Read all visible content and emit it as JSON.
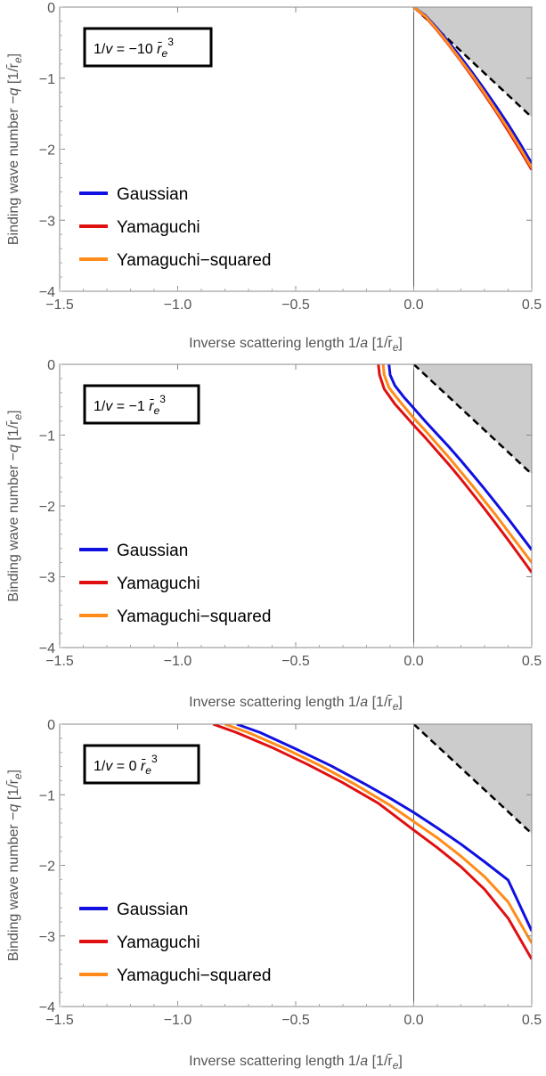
{
  "chart_data": [
    {
      "type": "line",
      "annotation": {
        "prefix": "1/",
        "var": "v",
        "mid": " = −10 ",
        "unit": "r̄",
        "unit_sub": "e",
        "unit_sup": "3"
      },
      "xlabel": {
        "text": "Inverse scattering length 1/",
        "var": "a",
        "unit": "1/r̄",
        "unit_sub": "e"
      },
      "ylabel": {
        "text": "Binding wave number −",
        "var": "q",
        "unit": "1/r̄",
        "unit_sub": "e"
      },
      "xlim": [
        -1.5,
        0.5
      ],
      "ylim": [
        -4,
        0
      ],
      "xticks": [
        -1.5,
        -1.0,
        -0.5,
        0.0,
        0.5
      ],
      "xtick_labels": [
        "−1.5",
        "−1.0",
        "−0.5",
        "0.0",
        "0.5"
      ],
      "yticks": [
        0,
        -1,
        -2,
        -3,
        -4
      ],
      "ytick_labels": [
        "0",
        "−1",
        "−2",
        "−3",
        "−4"
      ],
      "show_xlabel": true,
      "legend": [
        "Gaussian",
        "Yamaguchi",
        "Yamaguchi−squared"
      ],
      "legend_placement": "bottom-left",
      "series": [
        {
          "name": "Gaussian",
          "color": "#1010e0",
          "x": [
            0.0,
            0.05,
            0.1,
            0.15,
            0.2,
            0.25,
            0.3,
            0.35,
            0.4,
            0.45,
            0.5
          ],
          "y": [
            0.0,
            -0.12,
            -0.3,
            -0.5,
            -0.71,
            -0.93,
            -1.16,
            -1.4,
            -1.65,
            -1.92,
            -2.2
          ]
        },
        {
          "name": "Yamaguchi",
          "color": "#e01010",
          "x": [
            0.0,
            0.05,
            0.1,
            0.15,
            0.2,
            0.25,
            0.3,
            0.35,
            0.4,
            0.45,
            0.5
          ],
          "y": [
            0.0,
            -0.14,
            -0.33,
            -0.54,
            -0.76,
            -0.99,
            -1.23,
            -1.48,
            -1.74,
            -2.01,
            -2.29
          ]
        },
        {
          "name": "Yamaguchi−squared",
          "color": "#ff8c1a",
          "x": [
            0.0,
            0.05,
            0.1,
            0.15,
            0.2,
            0.25,
            0.3,
            0.35,
            0.4,
            0.45,
            0.5
          ],
          "y": [
            0.0,
            -0.13,
            -0.32,
            -0.53,
            -0.75,
            -0.97,
            -1.21,
            -1.46,
            -1.71,
            -1.98,
            -2.26
          ]
        }
      ]
    },
    {
      "type": "line",
      "annotation": {
        "prefix": "1/",
        "var": "v",
        "mid": " = −1 ",
        "unit": "r̄",
        "unit_sub": "e",
        "unit_sup": "3"
      },
      "xlabel": {
        "text": "Inverse scattering length 1/",
        "var": "a",
        "unit": "1/r̄",
        "unit_sub": "e"
      },
      "ylabel": {
        "text": "Binding wave number −",
        "var": "q",
        "unit": "1/r̄",
        "unit_sub": "e"
      },
      "xlim": [
        -1.5,
        0.5
      ],
      "ylim": [
        -4,
        0
      ],
      "xticks": [
        -1.5,
        -1.0,
        -0.5,
        0.0,
        0.5
      ],
      "xtick_labels": [
        "−1.5",
        "−1.0",
        "−0.5",
        "0.0",
        "0.5"
      ],
      "yticks": [
        0,
        -1,
        -2,
        -3,
        -4
      ],
      "ytick_labels": [
        "0",
        "−1",
        "−2",
        "−3",
        "−4"
      ],
      "show_xlabel": true,
      "legend": [
        "Gaussian",
        "Yamaguchi",
        "Yamaguchi−squared"
      ],
      "legend_placement": "bottom-left",
      "series": [
        {
          "name": "Gaussian",
          "color": "#1010e0",
          "x": [
            -0.105,
            -0.1,
            -0.08,
            -0.04,
            0.0,
            0.05,
            0.1,
            0.15,
            0.2,
            0.25,
            0.3,
            0.35,
            0.4,
            0.45,
            0.5
          ],
          "y": [
            0.0,
            -0.15,
            -0.3,
            -0.47,
            -0.62,
            -0.81,
            -0.99,
            -1.17,
            -1.36,
            -1.56,
            -1.76,
            -1.97,
            -2.18,
            -2.4,
            -2.62
          ]
        },
        {
          "name": "Yamaguchi",
          "color": "#e01010",
          "x": [
            -0.15,
            -0.145,
            -0.125,
            -0.08,
            0.0,
            0.05,
            0.1,
            0.15,
            0.2,
            0.25,
            0.3,
            0.35,
            0.4,
            0.45,
            0.5
          ],
          "y": [
            0.0,
            -0.15,
            -0.35,
            -0.56,
            -0.86,
            -1.04,
            -1.23,
            -1.42,
            -1.62,
            -1.83,
            -2.04,
            -2.26,
            -2.48,
            -2.71,
            -2.94
          ]
        },
        {
          "name": "Yamaguchi−squared",
          "color": "#ff8c1a",
          "x": [
            -0.13,
            -0.125,
            -0.105,
            -0.06,
            0.0,
            0.05,
            0.1,
            0.15,
            0.2,
            0.25,
            0.3,
            0.35,
            0.4,
            0.45,
            0.5
          ],
          "y": [
            0.0,
            -0.15,
            -0.33,
            -0.52,
            -0.76,
            -0.94,
            -1.13,
            -1.32,
            -1.52,
            -1.72,
            -1.93,
            -2.14,
            -2.36,
            -2.58,
            -2.8
          ]
        }
      ]
    },
    {
      "type": "line",
      "annotation": {
        "prefix": "1/",
        "var": "v",
        "mid": " = 0 ",
        "unit": "r̄",
        "unit_sub": "e",
        "unit_sup": "3"
      },
      "xlabel": {
        "text": "Inverse scattering length 1/",
        "var": "a",
        "unit": "1/r̄",
        "unit_sub": "e"
      },
      "ylabel": {
        "text": "Binding wave number −",
        "var": "q",
        "unit": "1/r̄",
        "unit_sub": "e"
      },
      "xlim": [
        -1.5,
        0.5
      ],
      "ylim": [
        -4,
        0
      ],
      "xticks": [
        -1.5,
        -1.0,
        -0.5,
        0.0,
        0.5
      ],
      "xtick_labels": [
        "−1.5",
        "−1.0",
        "−0.5",
        "0.0",
        "0.5"
      ],
      "yticks": [
        0,
        -1,
        -2,
        -3,
        -4
      ],
      "ytick_labels": [
        "0",
        "−1",
        "−2",
        "−3",
        "−4"
      ],
      "show_xlabel": true,
      "legend": [
        "Gaussian",
        "Yamaguchi",
        "Yamaguchi−squared"
      ],
      "legend_placement": "bottom-left",
      "series": [
        {
          "name": "Gaussian",
          "color": "#1010e0",
          "x": [
            -0.75,
            -0.65,
            -0.5,
            -0.35,
            -0.2,
            -0.1,
            0.0,
            0.1,
            0.2,
            0.3,
            0.4,
            0.5
          ],
          "y": [
            0.0,
            -0.12,
            -0.35,
            -0.59,
            -0.86,
            -1.05,
            -1.25,
            -1.47,
            -1.7,
            -1.95,
            -2.21,
            -2.93
          ]
        },
        {
          "name": "Yamaguchi",
          "color": "#e01010",
          "x": [
            -0.85,
            -0.75,
            -0.6,
            -0.45,
            -0.3,
            -0.15,
            0.0,
            0.1,
            0.2,
            0.3,
            0.4,
            0.5
          ],
          "y": [
            0.0,
            -0.12,
            -0.33,
            -0.57,
            -0.83,
            -1.12,
            -1.5,
            -1.75,
            -2.02,
            -2.34,
            -2.75,
            -3.33
          ]
        },
        {
          "name": "Yamaguchi−squared",
          "color": "#ff8c1a",
          "x": [
            -0.8,
            -0.7,
            -0.55,
            -0.4,
            -0.25,
            -0.1,
            0.0,
            0.1,
            0.2,
            0.3,
            0.4,
            0.5
          ],
          "y": [
            0.0,
            -0.12,
            -0.34,
            -0.58,
            -0.85,
            -1.15,
            -1.38,
            -1.61,
            -1.87,
            -2.16,
            -2.52,
            -3.1
          ]
        }
      ]
    }
  ],
  "boundary": {
    "description_hidden": true,
    "style": "dashed",
    "color": "#000000",
    "fill": "#cccccc"
  }
}
